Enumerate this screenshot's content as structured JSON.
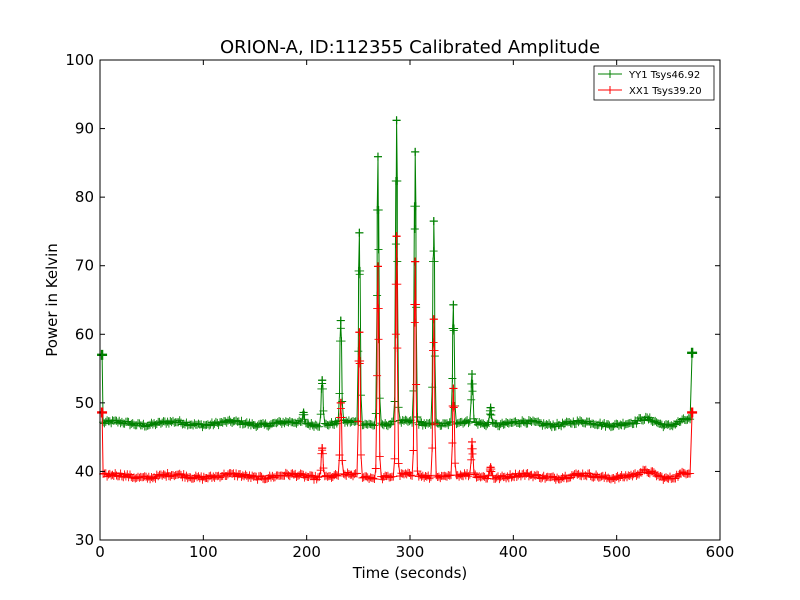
{
  "chart_data": {
    "type": "line",
    "title": "ORION-A, ID:112355 Calibrated Amplitude",
    "xlabel": "Time (seconds)",
    "ylabel": "Power in Kelvin",
    "xlim": [
      0,
      600
    ],
    "ylim": [
      30,
      100
    ],
    "xticks": [
      0,
      100,
      200,
      300,
      400,
      500,
      600
    ],
    "yticks": [
      30,
      40,
      50,
      60,
      70,
      80,
      90,
      100
    ],
    "grid": false,
    "legend_position": "top-right",
    "marker": "+",
    "time_range": [
      2,
      573
    ],
    "series": [
      {
        "name": "YY1 Tsys46.92",
        "color": "#008000",
        "baseline": 47.0,
        "endpoints": [
          57.0,
          57.3
        ],
        "peaks": [
          {
            "x": 197,
            "y": 48.6
          },
          {
            "x": 215,
            "y": 53.3
          },
          {
            "x": 233,
            "y": 62.0
          },
          {
            "x": 251,
            "y": 74.8
          },
          {
            "x": 269,
            "y": 85.9
          },
          {
            "x": 287,
            "y": 91.2
          },
          {
            "x": 305,
            "y": 86.6
          },
          {
            "x": 323,
            "y": 76.5
          },
          {
            "x": 342,
            "y": 64.3
          },
          {
            "x": 360,
            "y": 54.2
          },
          {
            "x": 378,
            "y": 49.3
          }
        ]
      },
      {
        "name": "XX1 Tsys39.20",
        "color": "#ff0000",
        "baseline": 39.3,
        "endpoints": [
          48.6,
          48.6
        ],
        "peaks": [
          {
            "x": 215,
            "y": 43.4
          },
          {
            "x": 233,
            "y": 50.0
          },
          {
            "x": 251,
            "y": 60.3
          },
          {
            "x": 269,
            "y": 69.9
          },
          {
            "x": 287,
            "y": 74.3
          },
          {
            "x": 305,
            "y": 70.6
          },
          {
            "x": 323,
            "y": 62.2
          },
          {
            "x": 342,
            "y": 52.1
          },
          {
            "x": 360,
            "y": 44.3
          },
          {
            "x": 378,
            "y": 40.6
          }
        ]
      }
    ]
  }
}
